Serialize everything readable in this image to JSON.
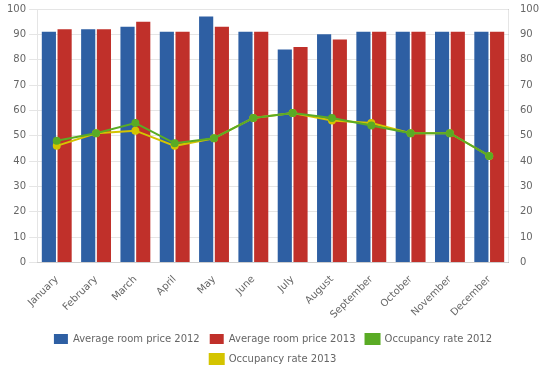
{
  "chart_data": {
    "type": "bar",
    "categories": [
      "January",
      "February",
      "March",
      "April",
      "May",
      "June",
      "July",
      "August",
      "September",
      "October",
      "November",
      "December"
    ],
    "series": [
      {
        "name": "Average room price 2012",
        "color": "#2e5fa3",
        "values": [
          91,
          92,
          93,
          91,
          97,
          91,
          84,
          90,
          91,
          91,
          91,
          91
        ]
      },
      {
        "name": "Average room price 2013",
        "color": "#c0302a",
        "values": [
          92,
          92,
          95,
          91,
          93,
          91,
          85,
          88,
          91,
          91,
          91,
          91
        ]
      },
      {
        "name": "Occupancy rate 2012",
        "type": "line",
        "marker": "circle",
        "axis": "y2",
        "color": "#5aab25",
        "values": [
          48,
          51,
          55,
          47,
          49,
          57,
          59,
          57,
          54,
          51,
          51,
          42
        ]
      },
      {
        "name": "Occupancy rate 2013",
        "type": "line",
        "marker": "circle",
        "axis": "y2",
        "color": "#d4c400",
        "values": [
          46,
          51,
          52,
          46,
          49,
          57,
          59,
          56,
          55,
          51,
          51,
          42
        ]
      }
    ],
    "ylim": [
      0,
      100
    ],
    "yticks": [
      0,
      10,
      20,
      30,
      40,
      50,
      60,
      70,
      80,
      90,
      100
    ],
    "y2lim": [
      0,
      100
    ],
    "y2ticks": [
      0,
      10,
      20,
      30,
      40,
      50,
      60,
      70,
      80,
      90,
      100
    ],
    "grid": true,
    "legend": "bottom"
  }
}
